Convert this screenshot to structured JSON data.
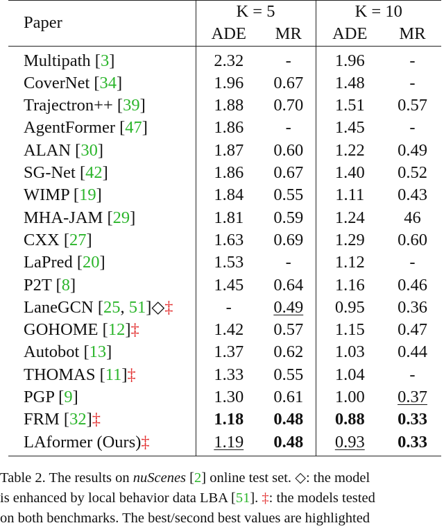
{
  "table": {
    "header": {
      "paper": "Paper",
      "k5": "K = 5",
      "k10": "K = 10",
      "metrics": [
        "ADE",
        "MR",
        "ADE",
        "MR"
      ]
    },
    "rows": [
      {
        "name": "Multipath",
        "refs": [
          "3"
        ],
        "sym": "",
        "values": [
          "2.32",
          "-",
          "1.96",
          "-"
        ],
        "style": [
          "",
          "",
          "",
          ""
        ]
      },
      {
        "name": "CoverNet",
        "refs": [
          "34"
        ],
        "sym": "",
        "values": [
          "1.96",
          "0.67",
          "1.48",
          "-"
        ],
        "style": [
          "",
          "",
          "",
          ""
        ]
      },
      {
        "name": "Trajectron++",
        "refs": [
          "39"
        ],
        "sym": "",
        "values": [
          "1.88",
          "0.70",
          "1.51",
          "0.57"
        ],
        "style": [
          "",
          "",
          "",
          ""
        ]
      },
      {
        "name": "AgentFormer",
        "refs": [
          "47"
        ],
        "sym": "",
        "values": [
          "1.86",
          "-",
          "1.45",
          "-"
        ],
        "style": [
          "",
          "",
          "",
          ""
        ]
      },
      {
        "name": "ALAN",
        "refs": [
          "30"
        ],
        "sym": "",
        "values": [
          "1.87",
          "0.60",
          "1.22",
          "0.49"
        ],
        "style": [
          "",
          "",
          "",
          ""
        ]
      },
      {
        "name": "SG-Net",
        "refs": [
          "42"
        ],
        "sym": "",
        "values": [
          "1.86",
          "0.67",
          "1.40",
          "0.52"
        ],
        "style": [
          "",
          "",
          "",
          ""
        ]
      },
      {
        "name": "WIMP",
        "refs": [
          "19"
        ],
        "sym": "",
        "values": [
          "1.84",
          "0.55",
          "1.11",
          "0.43"
        ],
        "style": [
          "",
          "",
          "",
          ""
        ]
      },
      {
        "name": "MHA-JAM",
        "refs": [
          "29"
        ],
        "sym": "",
        "values": [
          "1.81",
          "0.59",
          "1.24",
          "46"
        ],
        "style": [
          "",
          "",
          "",
          ""
        ]
      },
      {
        "name": "CXX",
        "refs": [
          "27"
        ],
        "sym": "",
        "values": [
          "1.63",
          "0.69",
          "1.29",
          "0.60"
        ],
        "style": [
          "",
          "",
          "",
          ""
        ]
      },
      {
        "name": "LaPred",
        "refs": [
          "20"
        ],
        "sym": "",
        "values": [
          "1.53",
          "-",
          "1.12",
          "-"
        ],
        "style": [
          "",
          "",
          "",
          ""
        ]
      },
      {
        "name": "P2T",
        "refs": [
          "8"
        ],
        "sym": "",
        "values": [
          "1.45",
          "0.64",
          "1.16",
          "0.46"
        ],
        "style": [
          "",
          "",
          "",
          ""
        ]
      },
      {
        "name": "LaneGCN",
        "refs": [
          "25",
          "51"
        ],
        "sym": "◇‡",
        "values": [
          "-",
          "0.49",
          "0.95",
          "0.36"
        ],
        "style": [
          "",
          "u",
          "",
          ""
        ]
      },
      {
        "name": "GOHOME",
        "refs": [
          "12"
        ],
        "sym": "‡",
        "values": [
          "1.42",
          "0.57",
          "1.15",
          "0.47"
        ],
        "style": [
          "",
          "",
          "",
          ""
        ]
      },
      {
        "name": "Autobot",
        "refs": [
          "13"
        ],
        "sym": "",
        "values": [
          "1.37",
          "0.62",
          "1.03",
          "0.44"
        ],
        "style": [
          "",
          "",
          "",
          ""
        ]
      },
      {
        "name": "THOMAS",
        "refs": [
          "11"
        ],
        "sym": "‡",
        "values": [
          "1.33",
          "0.55",
          "1.04",
          "-"
        ],
        "style": [
          "",
          "",
          "",
          ""
        ]
      },
      {
        "name": "PGP",
        "refs": [
          "9"
        ],
        "sym": "",
        "values": [
          "1.30",
          "0.61",
          "1.00",
          "0.37"
        ],
        "style": [
          "",
          "",
          "",
          "u"
        ]
      },
      {
        "name": "FRM",
        "refs": [
          "32"
        ],
        "sym": "‡",
        "values": [
          "1.18",
          "0.48",
          "0.88",
          "0.33"
        ],
        "style": [
          "b",
          "b",
          "b",
          "b"
        ]
      },
      {
        "name": "LAformer (Ours)",
        "refs": [],
        "sym": "‡",
        "values": [
          "1.19",
          "0.48",
          "0.93",
          "0.33"
        ],
        "style": [
          "u",
          "b",
          "u",
          "b"
        ]
      }
    ]
  },
  "caption": {
    "label": "Table 2.",
    "t1": " The results on ",
    "dataset": "nuScenes",
    "ref1": "2",
    "t2": " online test set. ",
    "diamond": "◇",
    "t3": ": the model",
    "t4": "is enhanced by local behavior data LBA [",
    "ref2": "51",
    "t5": "]. ",
    "dagger": "‡",
    "t6": ": the models tested",
    "t7": "on both benchmarks.  The best/second best values are highlighted"
  },
  "colors": {
    "ref": "#2bb52b",
    "dagger": "#e22d2d",
    "text": "#111111"
  }
}
